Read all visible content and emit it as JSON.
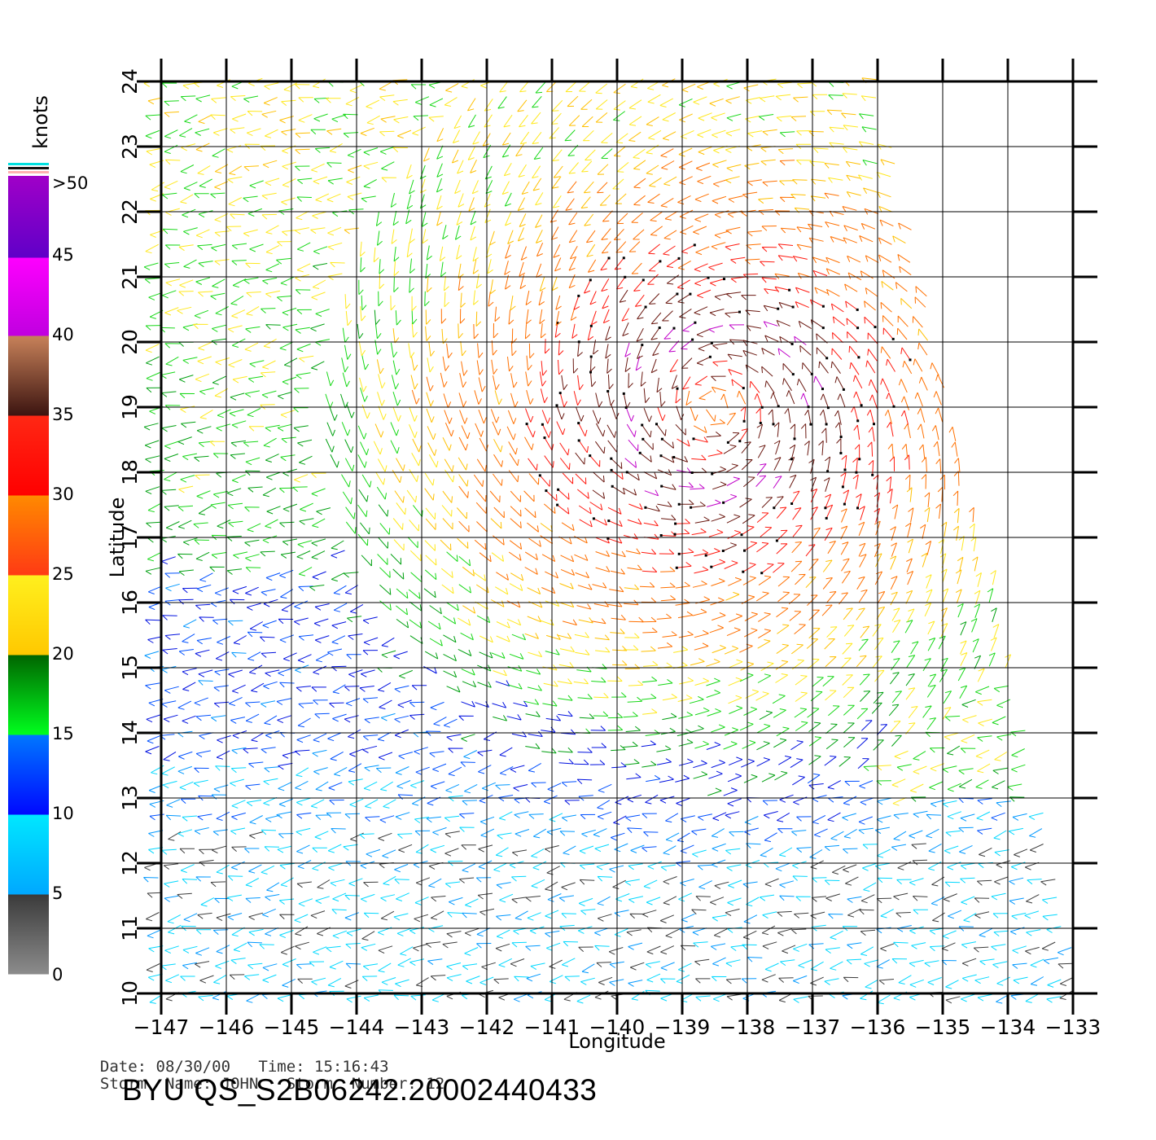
{
  "colorbar": {
    "unit_label": "knots",
    "bands": [
      {
        "from": 0,
        "to": 5,
        "top_color": "#3a3a3a",
        "bottom_color": "#8c8c8c"
      },
      {
        "from": 5,
        "to": 10,
        "top_color": "#00e8ff",
        "bottom_color": "#00a8ff"
      },
      {
        "from": 10,
        "to": 15,
        "top_color": "#0078ff",
        "bottom_color": "#0008ff"
      },
      {
        "from": 15,
        "to": 20,
        "top_color": "#006400",
        "bottom_color": "#00ff1e"
      },
      {
        "from": 20,
        "to": 25,
        "top_color": "#fff01e",
        "bottom_color": "#ffc800"
      },
      {
        "from": 25,
        "to": 30,
        "top_color": "#ff8a00",
        "bottom_color": "#ff3a14"
      },
      {
        "from": 30,
        "to": 35,
        "top_color": "#ff2814",
        "bottom_color": "#ff0000"
      },
      {
        "from": 35,
        "to": 40,
        "top_color": "#c8825a",
        "bottom_color": "#3c1410"
      },
      {
        "from": 40,
        "to": 45,
        "top_color": "#ff00ff",
        "bottom_color": "#c000e0"
      },
      {
        "from": 45,
        "to": 50,
        "top_color": "#a000c8",
        "bottom_color": "#6000c8"
      }
    ],
    "labels": [
      "0",
      "5",
      "10",
      "15",
      "20",
      "25",
      "30",
      "35",
      "40",
      "45",
      ">50"
    ]
  },
  "map": {
    "x_axis_label": "Longitude",
    "y_axis_label": "Latitude",
    "lon_range": [
      -147,
      -132.5
    ],
    "lat_range": [
      10,
      24
    ],
    "lon_ticks": [
      "-147",
      "-146",
      "-145",
      "-144",
      "-143",
      "-142",
      "-141",
      "-140",
      "-139",
      "-138",
      "-137",
      "-136",
      "-135",
      "-134",
      "-133"
    ],
    "lat_ticks": [
      "10",
      "11",
      "12",
      "13",
      "14",
      "15",
      "16",
      "17",
      "18",
      "19",
      "20",
      "21",
      "22",
      "23",
      "24"
    ],
    "grid": true,
    "storm_center": {
      "lon": -138.5,
      "lat": 19.0
    },
    "swath_east_edge": [
      {
        "lat": 24,
        "lon": -136.0
      },
      {
        "lat": 10,
        "lon": -132.8
      }
    ]
  },
  "info": {
    "date_label": "Date:",
    "date": "08/30/00",
    "time_label": "Time:",
    "time": "15:16:43",
    "storm_name_label": "Storm  Name:",
    "storm_name": "JOHN",
    "storm_number_label": "Storm  Number:",
    "storm_number": "12"
  },
  "title": "BYU  QS_S2B06242.20002440433"
}
